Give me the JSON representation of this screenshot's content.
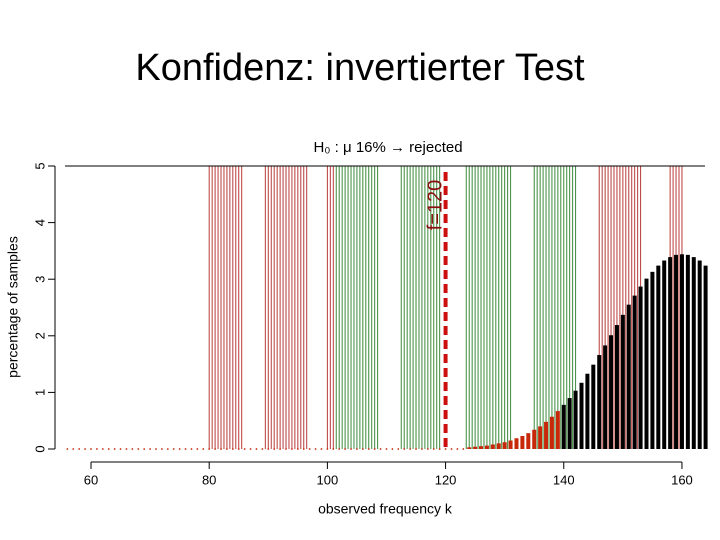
{
  "slide_title": "Konfidenz: invertierter Test",
  "chart_data": {
    "type": "bar",
    "title": "H₀ : μ    16% → rejected",
    "x_label": "observed frequency k",
    "y_label": "percentage of samples",
    "xlim": [
      55.6,
      163.9
    ],
    "xticks": [
      60,
      80,
      100,
      120,
      140,
      160
    ],
    "ylim": [
      0,
      5
    ],
    "yticks": [
      0,
      1,
      2,
      3,
      4,
      5
    ],
    "series": [
      {
        "color": "#c8280a",
        "x": [
          56,
          57,
          58,
          59,
          60,
          61,
          62,
          63,
          64,
          65,
          66,
          67,
          68,
          69,
          70,
          71,
          72,
          73,
          74,
          75,
          76,
          77,
          78,
          79,
          80,
          81,
          82,
          83,
          84,
          85,
          86,
          87,
          88,
          89,
          90,
          91,
          92,
          93,
          94,
          95,
          96,
          97,
          98,
          99,
          100,
          101,
          102,
          103,
          104,
          105,
          106,
          107,
          108,
          109,
          110,
          111,
          112,
          113,
          114,
          115,
          116,
          117,
          118,
          119,
          120,
          121,
          122,
          123,
          124,
          125,
          126,
          127,
          128,
          129,
          130,
          131,
          132,
          133,
          134,
          135,
          136,
          137,
          138,
          139
        ],
        "values": [
          0,
          0,
          0,
          0,
          0,
          0,
          0,
          0,
          0,
          0,
          0,
          0,
          0,
          0,
          0,
          0,
          0,
          0,
          0,
          0,
          0,
          0,
          0,
          0,
          0,
          0,
          0,
          0,
          0,
          0,
          0,
          0,
          0,
          0,
          0,
          0,
          0,
          0,
          0,
          0,
          0,
          0,
          0,
          0,
          0,
          0,
          0,
          0,
          0,
          0,
          0,
          0,
          0,
          0,
          0,
          0,
          0,
          0,
          0,
          0,
          0,
          0,
          0.01,
          0.01,
          0.01,
          0.01,
          0.02,
          0.02,
          0.03,
          0.04,
          0.05,
          0.06,
          0.08,
          0.1,
          0.12,
          0.15,
          0.19,
          0.23,
          0.28,
          0.34,
          0.4,
          0.48,
          0.57,
          0.67
        ]
      },
      {
        "color": "#000000",
        "x": [
          140,
          141,
          142,
          143,
          144,
          145,
          146,
          147,
          148,
          149,
          150,
          151,
          152,
          153,
          154,
          155,
          156,
          157,
          158,
          159,
          160,
          161,
          162,
          163,
          164
        ],
        "values": [
          0.78,
          0.9,
          1.03,
          1.17,
          1.33,
          1.49,
          1.66,
          1.83,
          2.01,
          2.19,
          2.37,
          2.55,
          2.71,
          2.87,
          3.01,
          3.13,
          3.24,
          3.33,
          3.39,
          3.43,
          3.44,
          3.43,
          3.39,
          3.33,
          3.24
        ]
      }
    ],
    "bands": [
      {
        "from": 80,
        "to": 85.5,
        "color": "#b83a3a"
      },
      {
        "from": 89.5,
        "to": 96.5,
        "color": "#b83a3a"
      },
      {
        "from": 100,
        "to": 101,
        "color": "#b83a3a"
      },
      {
        "from": 101.5,
        "to": 108.5,
        "color": "#3a8a3a"
      },
      {
        "from": 112.5,
        "to": 119,
        "color": "#3a8a3a"
      },
      {
        "from": 123.5,
        "to": 131,
        "color": "#3a8a3a"
      },
      {
        "from": 135,
        "to": 142,
        "color": "#3a8a3a"
      },
      {
        "from": 146,
        "to": 153,
        "color": "#b83a3a"
      },
      {
        "from": 158,
        "to": 160,
        "color": "#b83a3a"
      }
    ],
    "reference": {
      "x": 120,
      "label": "f=120",
      "color": "#cc1010"
    }
  }
}
